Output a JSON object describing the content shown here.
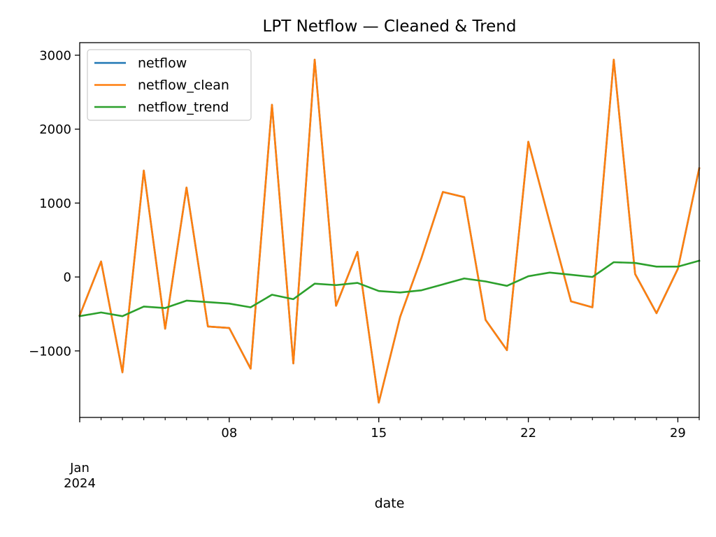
{
  "chart_data": {
    "type": "line",
    "title": "LPT Netflow — Cleaned & Trend",
    "xlabel": "date",
    "ylabel": "",
    "x": [
      "2024-01-01",
      "2024-01-02",
      "2024-01-03",
      "2024-01-04",
      "2024-01-05",
      "2024-01-06",
      "2024-01-07",
      "2024-01-08",
      "2024-01-09",
      "2024-01-10",
      "2024-01-11",
      "2024-01-12",
      "2024-01-13",
      "2024-01-14",
      "2024-01-15",
      "2024-01-16",
      "2024-01-17",
      "2024-01-18",
      "2024-01-19",
      "2024-01-20",
      "2024-01-21",
      "2024-01-22",
      "2024-01-23",
      "2024-01-24",
      "2024-01-25",
      "2024-01-26",
      "2024-01-27",
      "2024-01-28",
      "2024-01-29",
      "2024-01-30"
    ],
    "xlim": [
      "2024-01-01",
      "2024-01-30"
    ],
    "ylim": [
      -1900,
      3170
    ],
    "x_major_ticks": [
      {
        "date": "2024-01-08",
        "label": "08"
      },
      {
        "date": "2024-01-15",
        "label": "15"
      },
      {
        "date": "2024-01-22",
        "label": "22"
      },
      {
        "date": "2024-01-29",
        "label": "29"
      }
    ],
    "x_period_label": {
      "date": "2024-01-01",
      "line1": "Jan",
      "line2": "2024"
    },
    "y_ticks": [
      -1000,
      0,
      1000,
      2000,
      3000
    ],
    "y_tick_labels": [
      "−1000",
      "0",
      "1000",
      "2000",
      "3000"
    ],
    "grid": false,
    "legend_position": "upper-left",
    "series": [
      {
        "name": "netflow",
        "color": "#1f77b4",
        "values": [
          -520,
          210,
          -1290,
          1440,
          -700,
          1210,
          -670,
          -690,
          -1240,
          2330,
          -1170,
          2940,
          -390,
          340,
          -1700,
          -540,
          260,
          1150,
          1080,
          -580,
          -990,
          1830,
          740,
          -330,
          -410,
          2940,
          40,
          -490,
          110,
          1470
        ]
      },
      {
        "name": "netflow_clean",
        "color": "#ff7f0e",
        "values": [
          -520,
          210,
          -1290,
          1440,
          -700,
          1210,
          -670,
          -690,
          -1240,
          2330,
          -1170,
          2940,
          -390,
          340,
          -1700,
          -540,
          260,
          1150,
          1080,
          -580,
          -990,
          1830,
          740,
          -330,
          -410,
          2940,
          40,
          -490,
          110,
          1470
        ]
      },
      {
        "name": "netflow_trend",
        "color": "#2ca02c",
        "values": [
          -530,
          -480,
          -530,
          -400,
          -420,
          -320,
          -340,
          -360,
          -410,
          -240,
          -300,
          -90,
          -110,
          -80,
          -190,
          -210,
          -180,
          -100,
          -20,
          -60,
          -120,
          10,
          60,
          30,
          0,
          200,
          190,
          140,
          140,
          220
        ]
      }
    ]
  }
}
